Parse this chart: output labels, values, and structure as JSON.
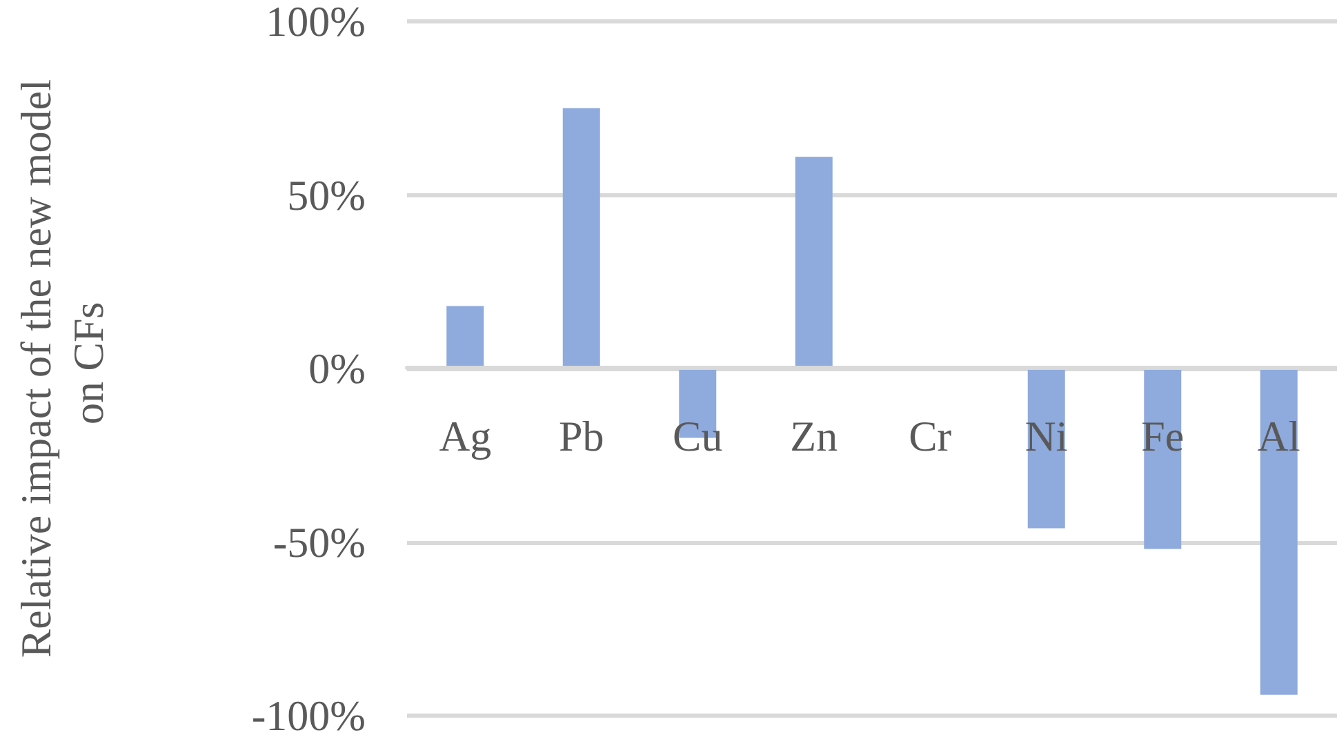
{
  "chart_data": {
    "type": "bar",
    "ylabel": "Relative impact of the new model on CFs",
    "categories": [
      "Ag",
      "Pb",
      "Cu",
      "Zn",
      "Cr",
      "Ni",
      "Fe",
      "Al"
    ],
    "values": [
      18,
      75,
      -20,
      61,
      0,
      -46,
      -52,
      -94
    ],
    "color": "#8faadc",
    "ylim": [
      -100,
      100
    ],
    "yticks": [
      {
        "value": -100,
        "label": "-100%"
      },
      {
        "value": -50,
        "label": "-50%"
      },
      {
        "value": 0,
        "label": "0%"
      },
      {
        "value": 50,
        "label": "50%"
      },
      {
        "value": 100,
        "label": "100%"
      }
    ],
    "grid": "y"
  }
}
